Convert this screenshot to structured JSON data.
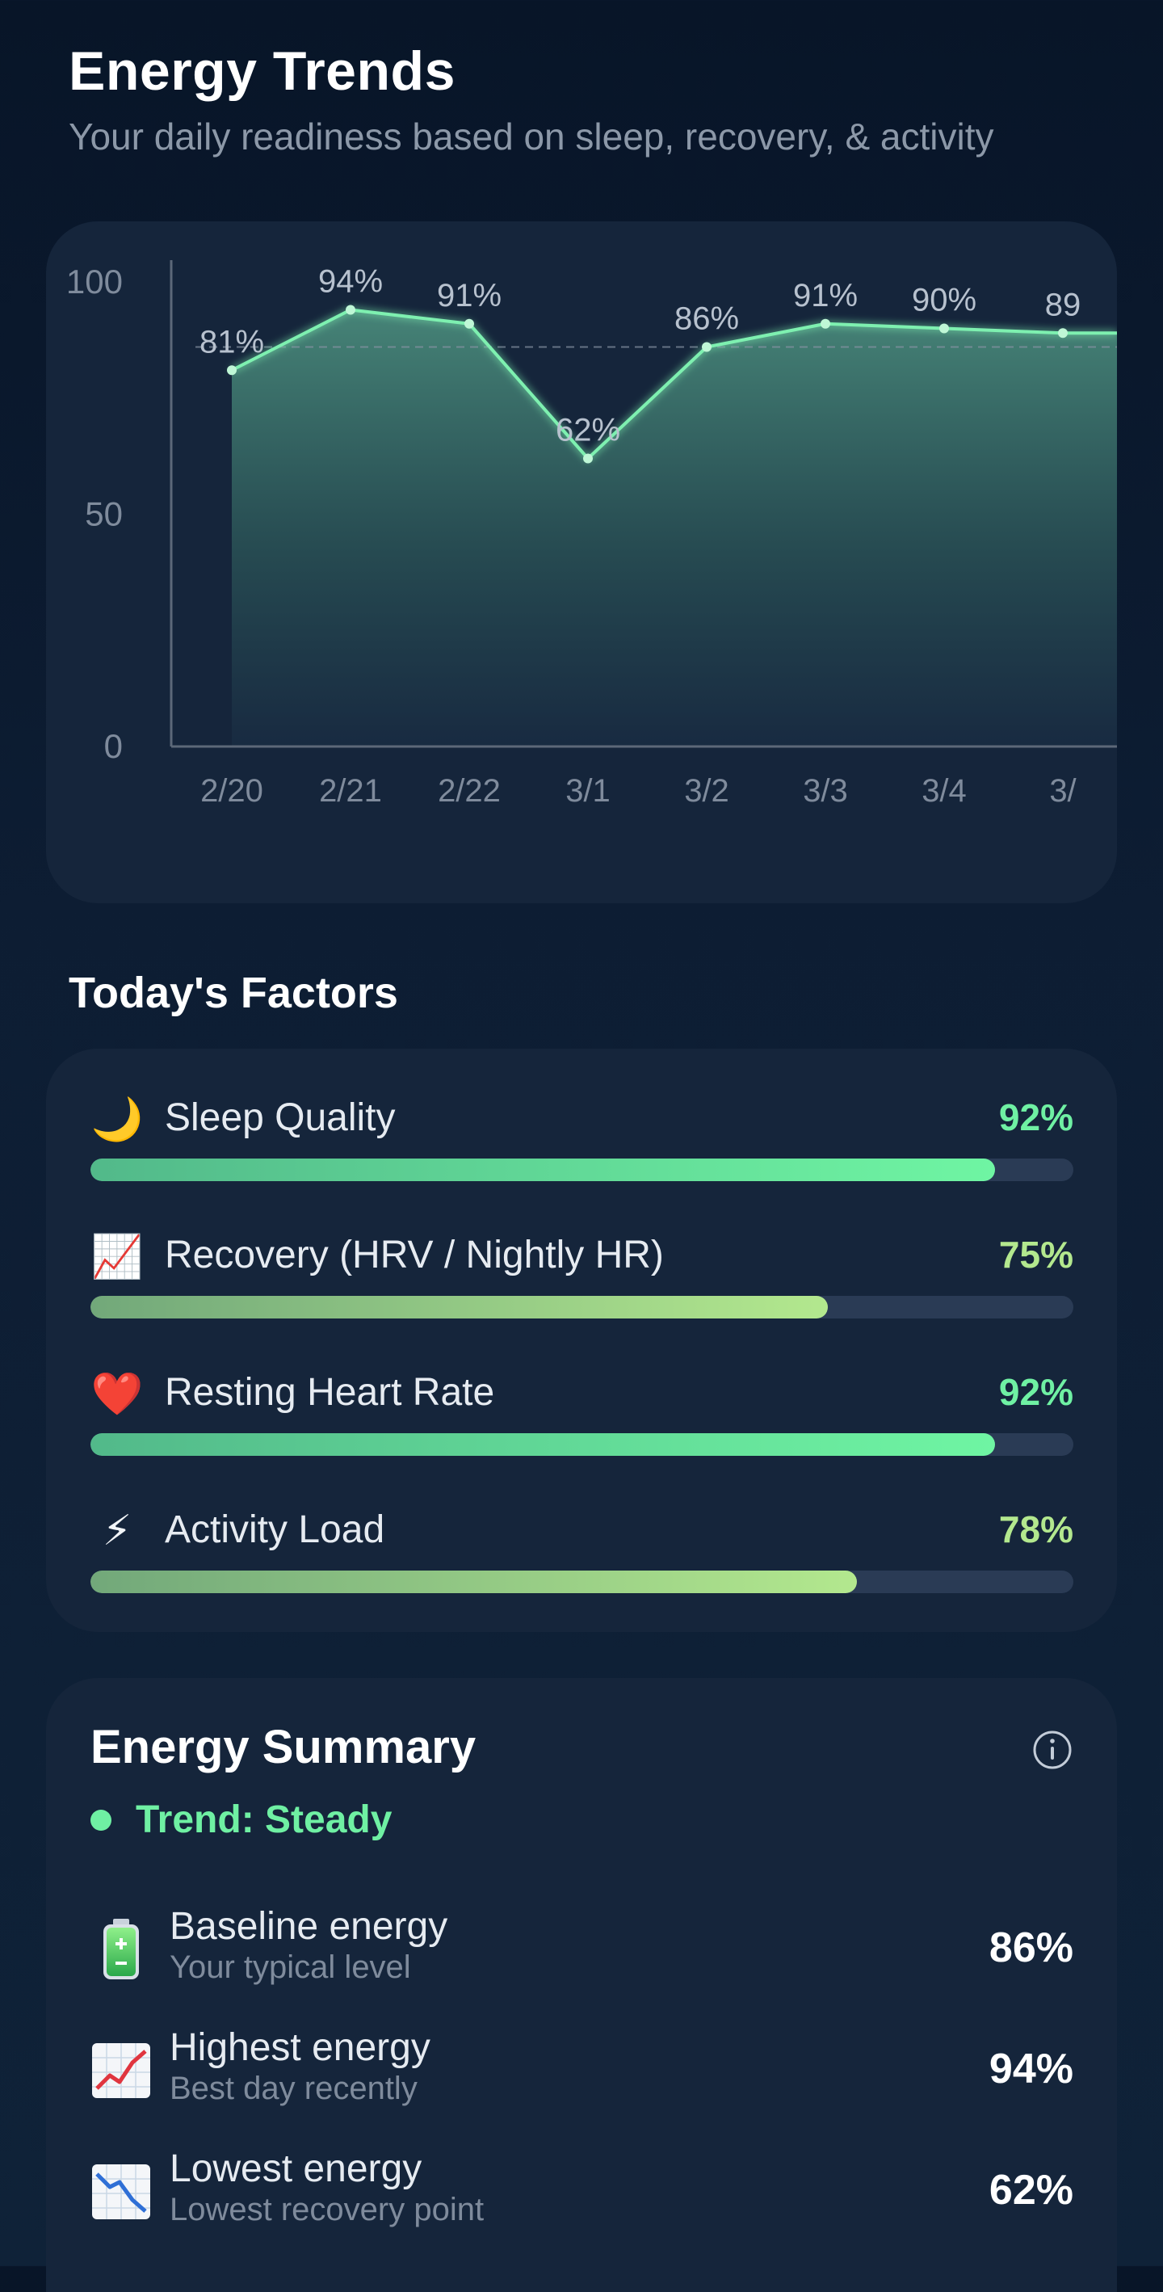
{
  "header": {
    "title": "Energy Trends",
    "subtitle": "Your daily readiness based on sleep, recovery, & activity"
  },
  "chart_data": {
    "type": "area",
    "categories": [
      "2/20",
      "2/21",
      "2/22",
      "3/1",
      "3/2",
      "3/3",
      "3/4",
      "3/"
    ],
    "values": [
      81,
      94,
      91,
      62,
      86,
      91,
      90,
      89
    ],
    "data_labels": [
      "81%",
      "94%",
      "91%",
      "62%",
      "86%",
      "91%",
      "90%",
      "89"
    ],
    "yticks": [
      "100",
      "50",
      "0"
    ],
    "ylim": [
      0,
      100
    ],
    "baseline": 86,
    "line_color": "#7ef0b0"
  },
  "factors": {
    "title": "Today's Factors",
    "items": [
      {
        "icon": "moon-icon",
        "glyph": "🌙",
        "label": "Sleep Quality",
        "value_text": "92%",
        "value": 92,
        "value_color": "#6ff0a3",
        "fill": "linear-gradient(90deg,#52b98a,#6ff5a3)"
      },
      {
        "icon": "chart-increasing-icon",
        "glyph": "📈",
        "label": "Recovery (HRV / Nightly HR)",
        "value_text": "75%",
        "value": 75,
        "value_color": "#b3e88e",
        "fill": "linear-gradient(90deg,#72a87a,#b3e88e)"
      },
      {
        "icon": "heart-icon",
        "glyph": "❤️",
        "label": "Resting Heart Rate",
        "value_text": "92%",
        "value": 92,
        "value_color": "#6ff0a3",
        "fill": "linear-gradient(90deg,#52b98a,#6ff5a3)"
      },
      {
        "icon": "lightning-icon",
        "glyph": "⚡",
        "label": "Activity Load",
        "value_text": "78%",
        "value": 78,
        "value_color": "#b3e88e",
        "fill": "linear-gradient(90deg,#72a87a,#b3e88e)"
      }
    ]
  },
  "summary": {
    "title": "Energy Summary",
    "info_icon": "info-icon",
    "trend_label": "Trend: Steady",
    "trend_color": "#6ff0a3",
    "rows": [
      {
        "icon": "battery-icon",
        "label": "Baseline energy",
        "sub": "Your typical level",
        "value": "86%"
      },
      {
        "icon": "chart-increasing-icon",
        "label": "Highest energy",
        "sub": "Best day recently",
        "value": "94%"
      },
      {
        "icon": "chart-decreasing-icon",
        "label": "Lowest energy",
        "sub": "Lowest recovery point",
        "value": "62%"
      }
    ]
  }
}
